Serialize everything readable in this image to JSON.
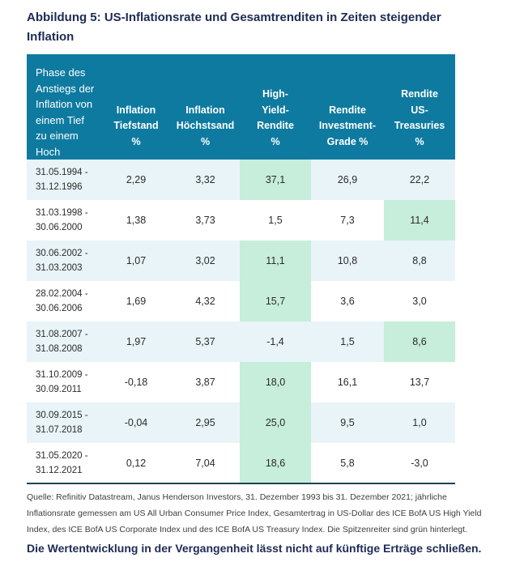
{
  "title": "Abbildung 5: US-Inflationsrate und Gesamtrenditen in Zeiten steigender Inflation",
  "colors": {
    "title_navy": "#1e2b55",
    "header_teal": "#0e7aa0",
    "zebra_row_blue": "#e9f4f8",
    "highlight_green": "#c6eeda",
    "table_bottom_border": "#1d4256",
    "body_text": "#2b2b2b",
    "source_text": "#3d3d3d"
  },
  "chart_data": {
    "type": "table",
    "title": "Abbildung 5: US-Inflationsrate und Gesamtrenditen in Zeiten steigender Inflation",
    "columns": [
      "Phase des\nAnstiegs der\nInflation von\neinem Tief\nzu einem\nHoch",
      "Inflation\nTiefstand\n%",
      "Inflation\nHöchstsand\n%",
      "High-\nYield-\nRendite\n%",
      "Rendite\nInvestment-\nGrade %",
      "Rendite\nUS-\nTreasuries\n%"
    ],
    "rows": [
      {
        "period": "31.05.1994 -\n31.12.1996",
        "values": [
          "2,29",
          "3,32",
          "37,1",
          "26,9",
          "22,2"
        ],
        "highlight_index": 2
      },
      {
        "period": "31.03.1998 -\n30.06.2000",
        "values": [
          "1,38",
          "3,73",
          "1,5",
          "7,3",
          "11,4"
        ],
        "highlight_index": 4
      },
      {
        "period": "30.06.2002 -\n31.03.2003",
        "values": [
          "1,07",
          "3,02",
          "11,1",
          "10,8",
          "8,8"
        ],
        "highlight_index": 2
      },
      {
        "period": "28.02.2004 -\n30.06.2006",
        "values": [
          "1,69",
          "4,32",
          "15,7",
          "3,6",
          "3,0"
        ],
        "highlight_index": 2
      },
      {
        "period": "31.08.2007 -\n31.08.2008",
        "values": [
          "1,97",
          "5,37",
          "-1,4",
          "1,5",
          "8,6"
        ],
        "highlight_index": 4
      },
      {
        "period": "31.10.2009 -\n30.09.2011",
        "values": [
          "-0,18",
          "3,87",
          "18,0",
          "16,1",
          "13,7"
        ],
        "highlight_index": 2
      },
      {
        "period": "30.09.2015 -\n31.07.2018",
        "values": [
          "-0,04",
          "2,95",
          "25,0",
          "9,5",
          "1,0"
        ],
        "highlight_index": 2
      },
      {
        "period": "31.05.2020 -\n31.12.2021",
        "values": [
          "0,12",
          "7,04",
          "18,6",
          "5,8",
          "-3,0"
        ],
        "highlight_index": 2
      }
    ]
  },
  "footer": {
    "source": "Quelle: Refinitiv Datastream, Janus Henderson Investors, 31. Dezember 1993 bis 31. Dezember 2021; jährliche Inflationsrate gemessen am US All Urban Consumer Price Index, Gesamtertrag in US-Dollar des ICE BofA US High Yield Index, des ICE BofA US Corporate Index und des ICE BofA US Treasury Index. Die Spitzenreiter sind grün hinterlegt.",
    "disclaimer": "Die Wertentwicklung in der Vergangenheit lässt nicht auf künftige Erträge schließen."
  }
}
